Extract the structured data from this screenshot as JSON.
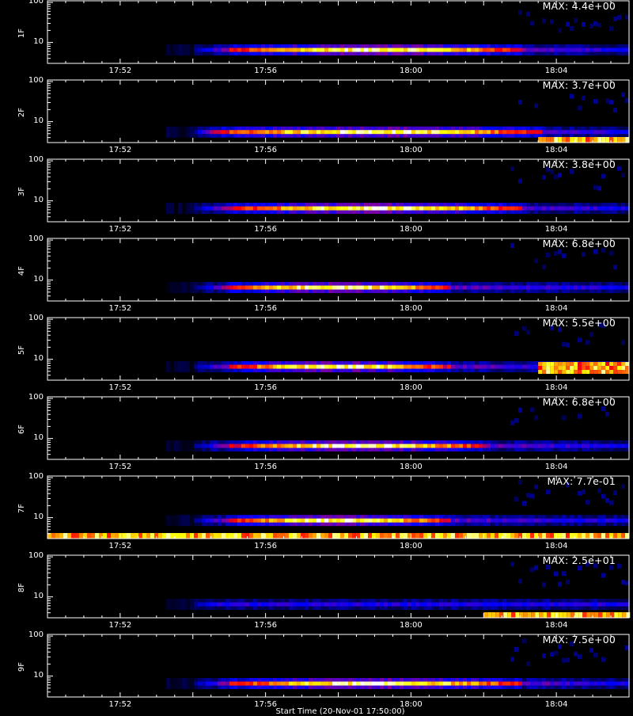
{
  "chart_data": [
    {
      "type": "heatmap",
      "panel_label": "1F",
      "max_label": "MAX: 4.4e+00",
      "max": 4.4,
      "ytick_labels": [
        "100",
        "10"
      ],
      "xtick_labels": [
        "17:52",
        "17:56",
        "18:00",
        "18:04"
      ],
      "band_start": "17:54:00",
      "band_peak_start": "17:55:00",
      "band_peak_end": "18:03:00",
      "band_end": "18:06",
      "band_energy": 6.5,
      "low_energy_stripe": false
    },
    {
      "type": "heatmap",
      "panel_label": "2F",
      "max_label": "MAX: 3.7e+00",
      "max": 3.7,
      "ytick_labels": [
        "100",
        "10"
      ],
      "xtick_labels": [
        "17:52",
        "17:56",
        "18:00",
        "18:04"
      ],
      "band_start": "17:54:00",
      "band_peak_start": "17:54:30",
      "band_peak_end": "18:03:30",
      "band_end": "18:06",
      "band_energy": 5.5,
      "low_energy_stripe": true,
      "stripe_start": "18:03:30"
    },
    {
      "type": "heatmap",
      "panel_label": "3F",
      "max_label": "MAX: 3.8e+00",
      "max": 3.8,
      "ytick_labels": [
        "100",
        "10"
      ],
      "xtick_labels": [
        "17:52",
        "17:56",
        "18:00",
        "18:04"
      ],
      "band_start": "17:54:00",
      "band_peak_start": "17:55:00",
      "band_peak_end": "18:03:00",
      "band_end": "18:06",
      "band_energy": 6.5,
      "low_energy_stripe": false
    },
    {
      "type": "heatmap",
      "panel_label": "4F",
      "max_label": "MAX: 6.8e+00",
      "max": 6.8,
      "ytick_labels": [
        "100",
        "10"
      ],
      "xtick_labels": [
        "17:52",
        "17:56",
        "18:00",
        "18:04"
      ],
      "band_start": "17:54:00",
      "band_peak_start": "17:55:00",
      "band_peak_end": "18:01:00",
      "band_end": "18:06",
      "band_energy": 6.5,
      "low_energy_stripe": false
    },
    {
      "type": "heatmap",
      "panel_label": "5F",
      "max_label": "MAX: 5.5e+00",
      "max": 5.5,
      "ytick_labels": [
        "100",
        "10"
      ],
      "xtick_labels": [
        "17:52",
        "17:56",
        "18:00",
        "18:04"
      ],
      "band_start": "17:54:00",
      "band_peak_start": "17:55:00",
      "band_peak_end": "18:01:00",
      "band_end": "18:06",
      "band_energy": 6.5,
      "low_energy_stripe": false,
      "late_hot_region_start": "18:03:30"
    },
    {
      "type": "heatmap",
      "panel_label": "6F",
      "max_label": "MAX: 6.8e+00",
      "max": 6.8,
      "ytick_labels": [
        "100",
        "10"
      ],
      "xtick_labels": [
        "17:52",
        "17:56",
        "18:00",
        "18:04"
      ],
      "band_start": "17:54:00",
      "band_peak_start": "17:55:00",
      "band_peak_end": "18:02:00",
      "band_end": "18:06",
      "band_energy": 6.5,
      "low_energy_stripe": false
    },
    {
      "type": "heatmap",
      "panel_label": "7F",
      "max_label": "MAX: 7.7e-01",
      "max": 0.77,
      "ytick_labels": [
        "100",
        "10"
      ],
      "xtick_labels": [
        "17:52",
        "17:56",
        "18:00",
        "18:04"
      ],
      "band_start": "17:54:00",
      "band_peak_start": "17:55:00",
      "band_peak_end": "18:01:00",
      "band_end": "18:06",
      "band_energy": 8.5,
      "low_energy_stripe": true,
      "stripe_start": "17:50:00"
    },
    {
      "type": "heatmap",
      "panel_label": "8F",
      "max_label": "MAX: 2.5e+01",
      "max": 25,
      "ytick_labels": [
        "100",
        "10"
      ],
      "xtick_labels": [
        "17:52",
        "17:56",
        "18:00",
        "18:04"
      ],
      "band_start": "17:54:00",
      "band_peak_start": "17:55:00",
      "band_peak_end": "18:02:00",
      "band_end": "18:06",
      "band_energy": 6.5,
      "low_energy_stripe": true,
      "stripe_start": "18:02:00",
      "dim_band": true
    },
    {
      "type": "heatmap",
      "panel_label": "9F",
      "max_label": "MAX: 7.5e+00",
      "max": 7.5,
      "ytick_labels": [
        "100",
        "10"
      ],
      "xtick_labels": [
        "17:52",
        "17:56",
        "18:00",
        "18:04"
      ],
      "band_start": "17:54:00",
      "band_peak_start": "17:55:00",
      "band_peak_end": "18:03:00",
      "band_end": "18:06",
      "band_energy": 6.5,
      "low_energy_stripe": false
    }
  ],
  "x_axis": {
    "start": "17:50:00",
    "end": "18:06:00",
    "label": "Start Time (20-Nov-01 17:50:00)"
  },
  "y_axis": {
    "scale": "log",
    "min": 3,
    "max": 110
  },
  "colors": {
    "background": "#000000",
    "axis": "#ffffff",
    "colormap": [
      "#000000",
      "#000060",
      "#0000ff",
      "#8000a0",
      "#ff0000",
      "#ff8000",
      "#ffff00",
      "#ffffff"
    ]
  }
}
